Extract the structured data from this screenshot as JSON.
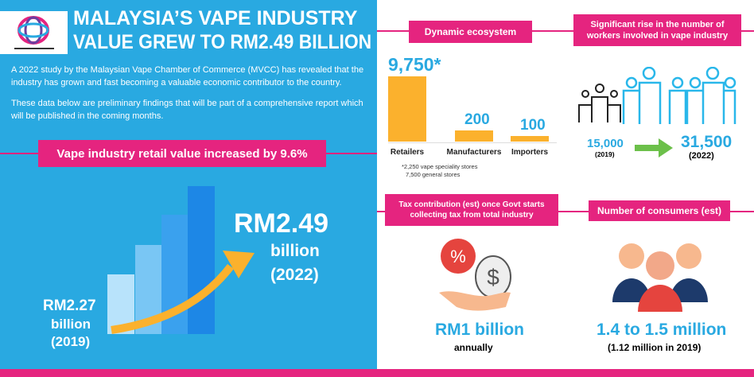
{
  "header": {
    "title_line1": "MALAYSIA’S VAPE INDUSTRY",
    "title_line2": "VALUE GREW TO RM2.49 BILLION"
  },
  "intro": {
    "p1": "A 2022 study by the Malaysian Vape Chamber of Commerce (MVCC) has revealed that the industry has grown and fast becoming a valuable economic contributor to the country.",
    "p2": "These data below are preliminary findings that will be part of a comprehensive report which will be published in the coming months."
  },
  "retail": {
    "banner": "Vape industry retail value increased by 9.6%",
    "start_value": "RM2.27",
    "start_unit": "billion",
    "start_year": "(2019)",
    "end_value": "RM2.49",
    "end_unit": "billion",
    "end_year": "(2022)"
  },
  "ecosystem": {
    "banner": "Dynamic ecosystem",
    "note1": "*2,250 vape speciality stores",
    "note2": "7,500 general stores"
  },
  "chart_data": {
    "type": "bar",
    "categories": [
      "Retailers",
      "Manufacturers",
      "Importers"
    ],
    "values": [
      9750,
      200,
      100
    ],
    "value_labels": [
      "9,750*",
      "200",
      "100"
    ],
    "bar_color": "#fbb12d"
  },
  "workers": {
    "banner": "Significant rise in the number of workers involved in vape industry",
    "from_value": "15,000",
    "from_year": "(2019)",
    "to_value": "31,500",
    "to_year": "(2022)"
  },
  "tax": {
    "banner": "Tax contribution (est) once Govt starts collecting tax from total industry",
    "value": "RM1 billion",
    "period": "annually"
  },
  "consumers": {
    "banner": "Number of consumers (est)",
    "value": "1.4 to 1.5 million",
    "note": "(1.12 million in 2019)"
  },
  "colors": {
    "blue": "#29a9e1",
    "pink": "#e5247f",
    "orange": "#fbb12d",
    "green": "#6cc04a"
  }
}
